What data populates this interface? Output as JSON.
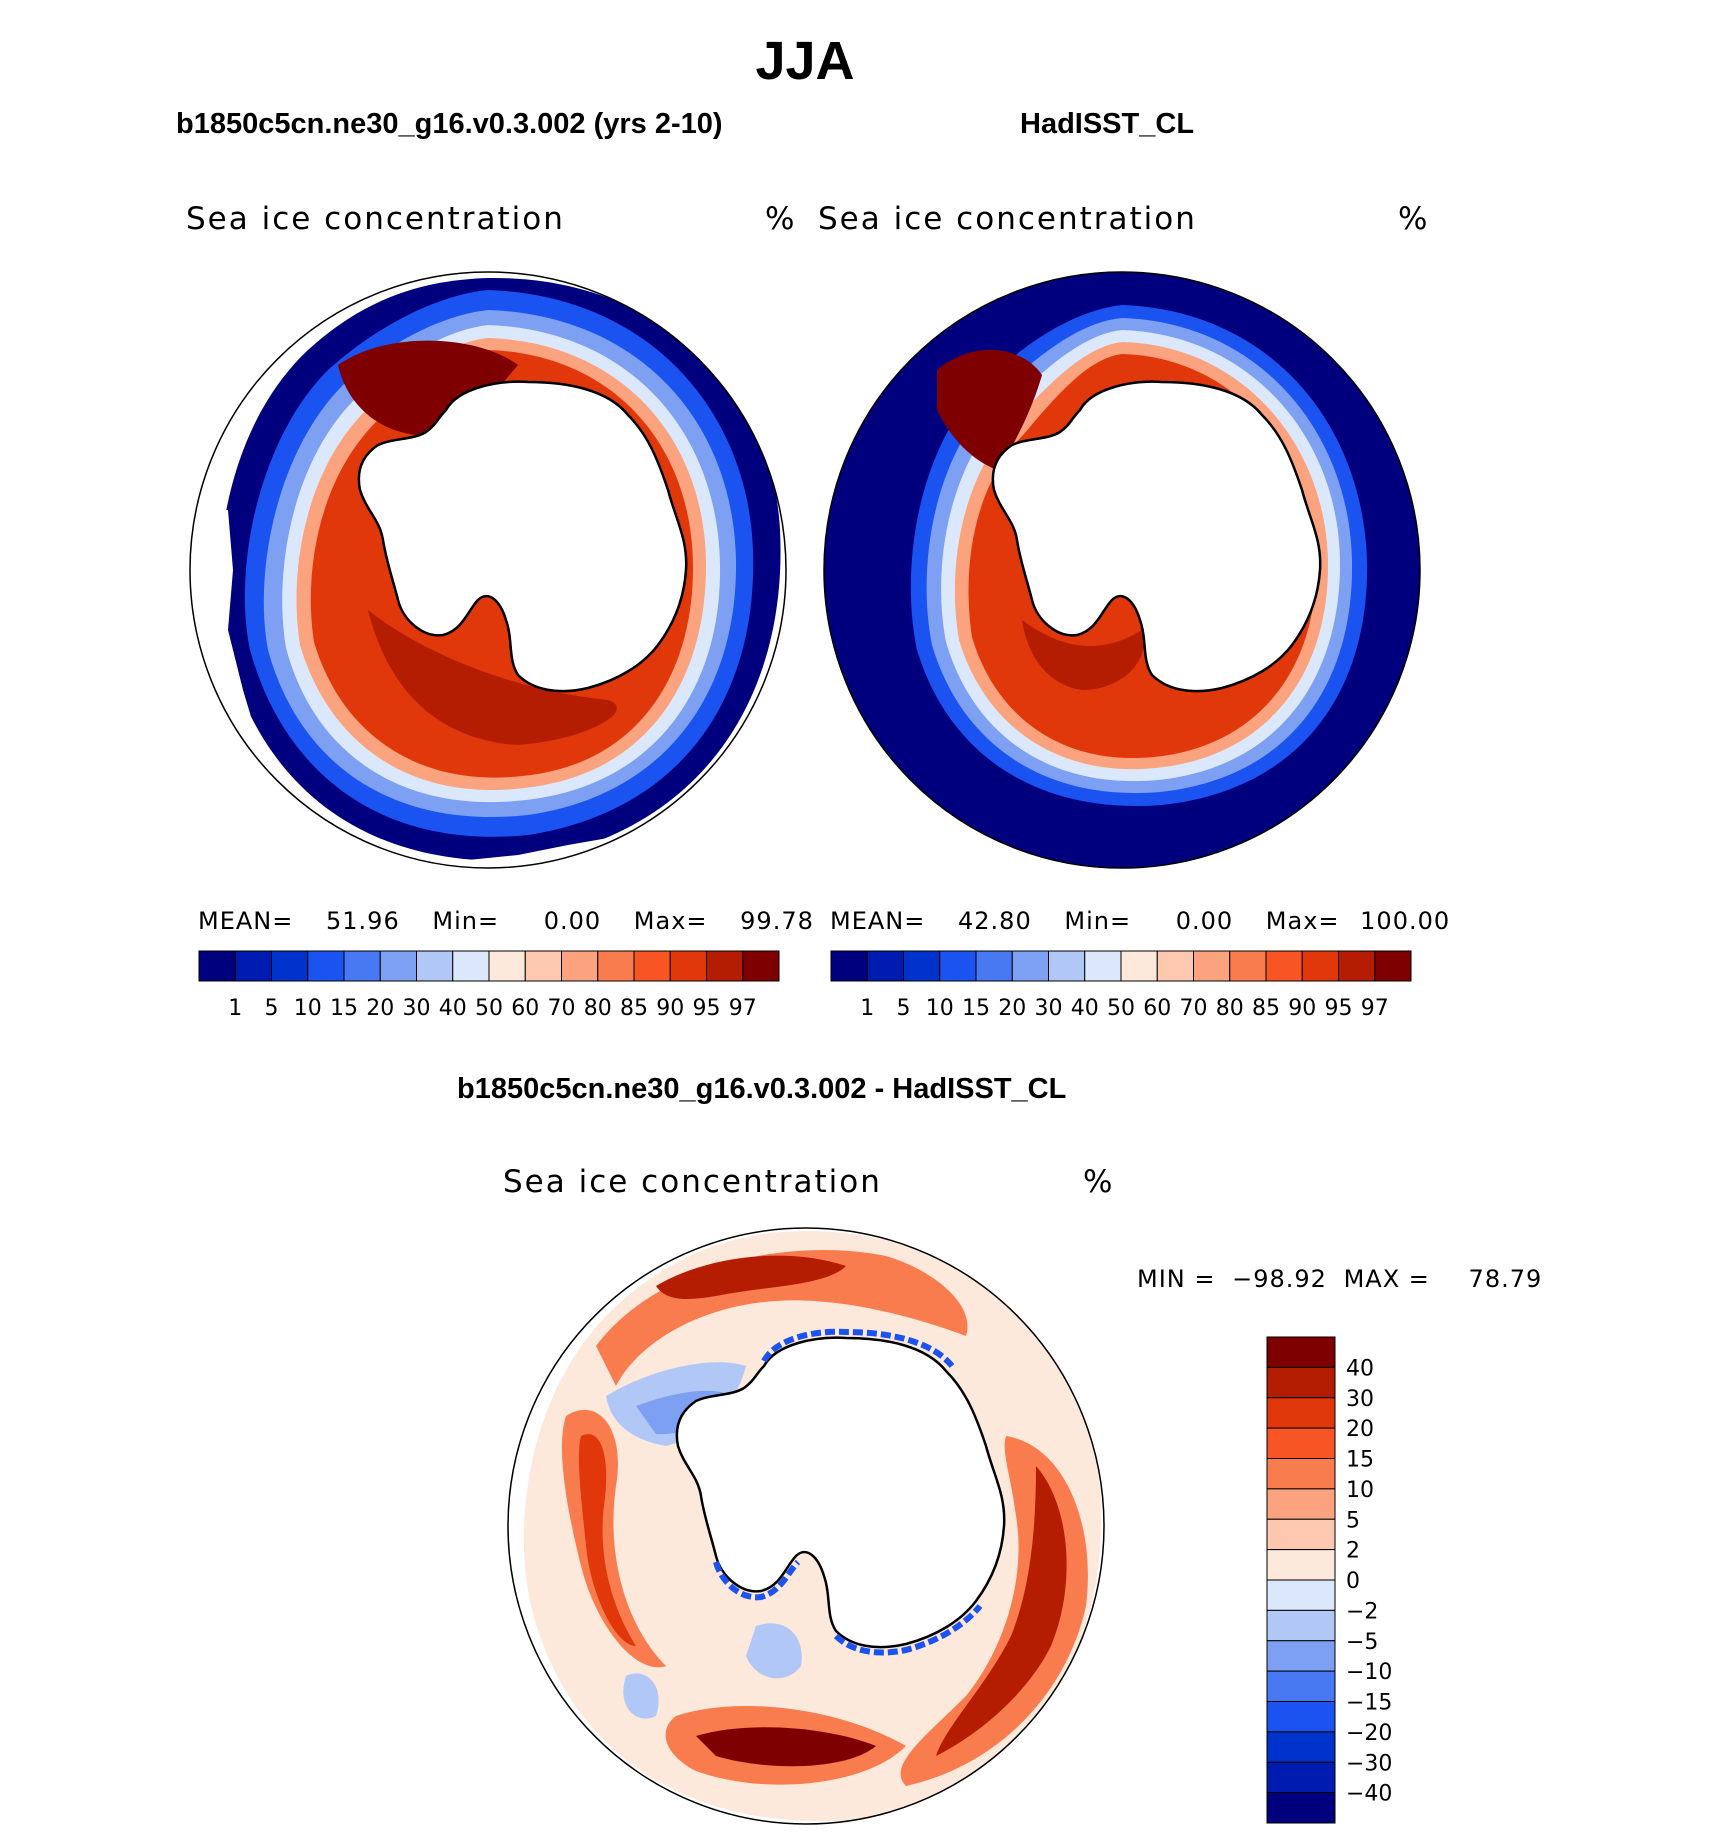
{
  "season": "JJA",
  "panels": [
    {
      "case_title": "b1850c5cn.ne30_g16.v0.3.002 (yrs 2-10)",
      "var_label": "Sea ice concentration",
      "units": "%",
      "stats": {
        "mean_label": "MEAN=",
        "mean": "51.96",
        "min_label": "Min=",
        "min": "0.00",
        "max_label": "Max=",
        "max": "99.78"
      }
    },
    {
      "case_title": "HadISST_CL",
      "var_label": "Sea ice concentration",
      "units": "%",
      "stats": {
        "mean_label": "MEAN=",
        "mean": "42.80",
        "min_label": "Min=",
        "min": "0.00",
        "max_label": "Max=",
        "max": "100.00"
      }
    }
  ],
  "abs_colorbar": {
    "colors": [
      "#00007f",
      "#001bb0",
      "#0033cc",
      "#1a53f0",
      "#4878f2",
      "#7ea0f2",
      "#b1c8f6",
      "#dbe8fb",
      "#fde8dc",
      "#fcc8b0",
      "#fba27f",
      "#f97c4f",
      "#f75524",
      "#e0370b",
      "#b41d02",
      "#7f0000"
    ],
    "tick_labels": [
      "1",
      "5",
      "10",
      "15",
      "20",
      "30",
      "40",
      "50",
      "60",
      "70",
      "80",
      "85",
      "90",
      "95",
      "97"
    ]
  },
  "diff_panel": {
    "title": "b1850c5cn.ne30_g16.v0.3.002 - HadISST_CL",
    "var_label": "Sea ice concentration",
    "units": "%",
    "minmax": {
      "min_label": "MIN =",
      "min": "−98.92",
      "max_label": "MAX =",
      "max": "78.79"
    }
  },
  "diff_colorbar": {
    "colors": [
      "#7f0000",
      "#b41d02",
      "#e0370b",
      "#f75524",
      "#f97c4f",
      "#fba27f",
      "#fcc8b0",
      "#fde8dc",
      "#dbe8fb",
      "#b1c8f6",
      "#7ea0f2",
      "#4878f2",
      "#1a53f0",
      "#0033cc",
      "#001bb0",
      "#00007f"
    ],
    "tick_labels": [
      "40",
      "30",
      "20",
      "15",
      "10",
      "5",
      "2",
      "0",
      "−2",
      "−5",
      "−10",
      "−15",
      "−20",
      "−30",
      "−40"
    ]
  },
  "land_color": "#ffffff",
  "map_theme": {
    "ocean_far": "#00007f",
    "ocean_mid": "#1a53f0",
    "ice_edge": "#dbe8fb",
    "ice_mid": "#f97c4f",
    "ice_core": "#e0370b",
    "ice_max": "#7f0000",
    "diff_pos_strong": "#b41d02",
    "diff_pos": "#f97c4f",
    "diff_pos_weak": "#fde8dc",
    "diff_neg_weak": "#b1c8f6",
    "diff_neg": "#1a53f0"
  }
}
